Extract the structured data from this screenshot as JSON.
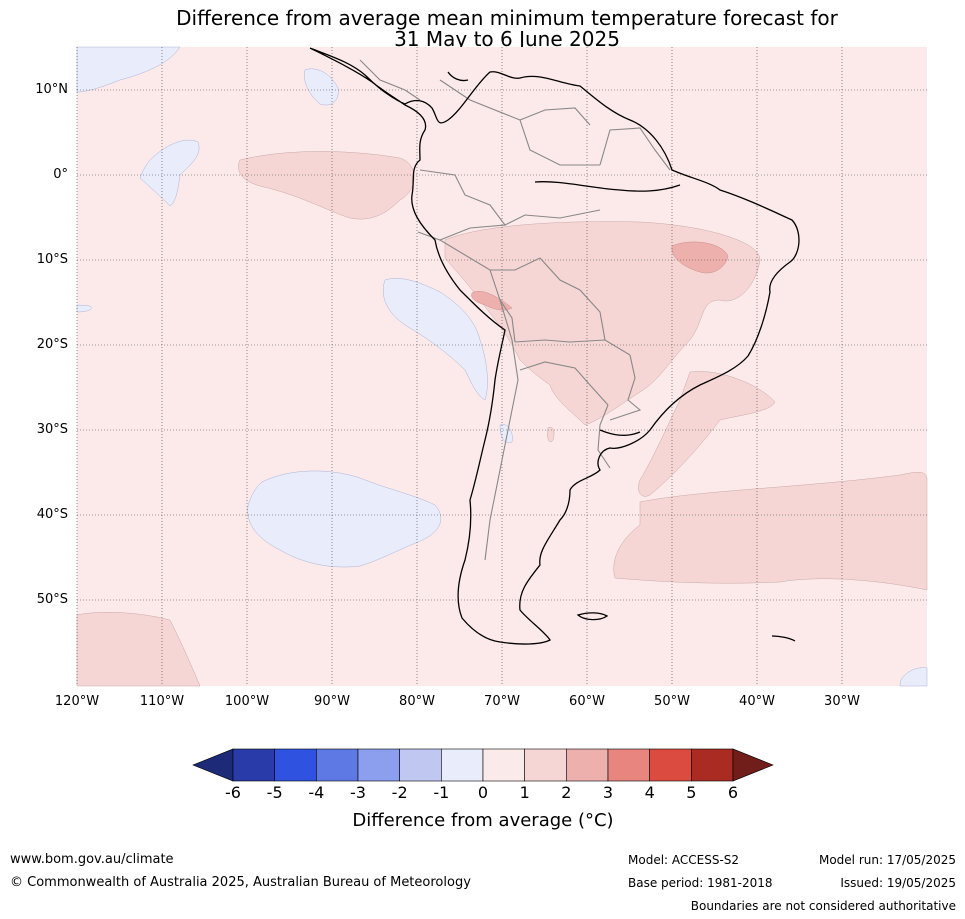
{
  "title": {
    "line1": "Difference from average mean minimum temperature forecast for",
    "line2": "31 May to 6 June 2025"
  },
  "map": {
    "lat_labels": [
      "10°N",
      "0°",
      "10°S",
      "20°S",
      "30°S",
      "40°S",
      "50°S"
    ],
    "lon_labels": [
      "120°W",
      "110°W",
      "100°W",
      "90°W",
      "80°W",
      "70°W",
      "60°W",
      "50°W",
      "40°W",
      "30°W"
    ],
    "background_color": "#fbeae9",
    "region": "South America"
  },
  "colorbar": {
    "ticks": [
      "-6",
      "-5",
      "-4",
      "-3",
      "-2",
      "-1",
      "0",
      "1",
      "2",
      "3",
      "4",
      "5",
      "6"
    ],
    "colors": [
      "#283ba8",
      "#2f52e0",
      "#5e78e4",
      "#8b9fee",
      "#c0c8f2",
      "#e9ecfb",
      "#fbeaea",
      "#f5d6d5",
      "#edb0ad",
      "#e9857f",
      "#dc4b40",
      "#aa2b22"
    ],
    "low_extend_color": "#1c2a78",
    "high_extend_color": "#711d19",
    "label": "Difference from average (°C)"
  },
  "footer": {
    "url": "www.bom.gov.au/climate",
    "copyright": "© Commonwealth of Australia 2025, Australian Bureau of Meteorology",
    "model": "Model: ACCESS-S2",
    "base_period": "Base period: 1981-2018",
    "model_run": "Model run: 17/05/2025",
    "issued": "Issued: 19/05/2025",
    "disclaimer": "Boundaries are not considered authoritative"
  }
}
